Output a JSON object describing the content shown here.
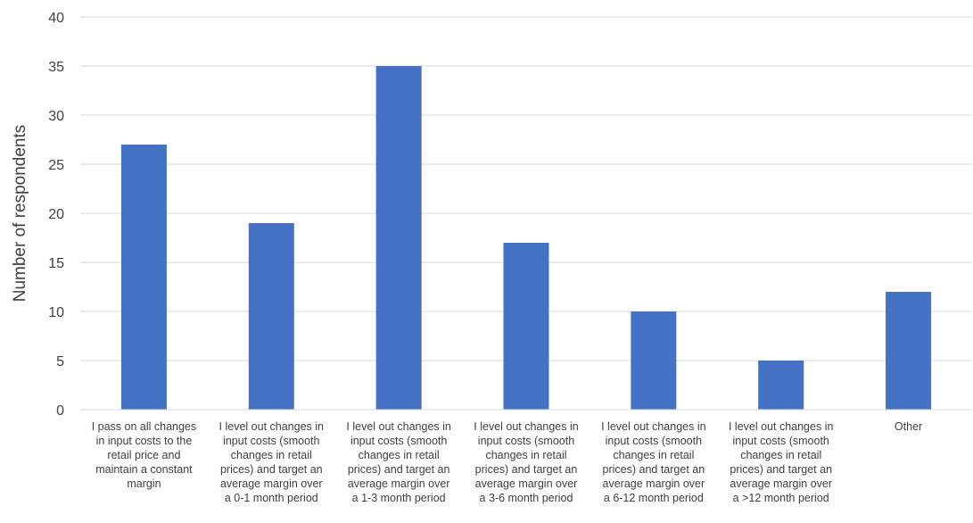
{
  "chart_data": {
    "type": "bar",
    "title": "",
    "xlabel": "",
    "ylabel": "Number of respondents",
    "ylim": [
      0,
      40
    ],
    "yticks": [
      0,
      5,
      10,
      15,
      20,
      25,
      30,
      35,
      40
    ],
    "grid": true,
    "legend": "none",
    "bar_color": "#4472C4",
    "categories": [
      "I pass on all changes in input costs to the retail price and maintain a constant margin",
      "I level out changes in input costs (smooth changes in retail prices) and target an average margin over a 0-1 month period",
      "I level out changes in input costs (smooth changes in retail prices) and target an average margin over a 1-3 month period",
      "I level out changes in input costs (smooth changes in retail prices) and target an average margin over a 3-6 month period",
      "I level out changes in input costs (smooth changes in retail prices) and target an average margin over a 6-12 month period",
      "I level out changes in input costs (smooth changes in retail prices) and target an average margin over a >12 month period",
      "Other"
    ],
    "category_lines": [
      [
        "I pass on all changes",
        "in input costs to the",
        "retail price and",
        "maintain a constant",
        "margin"
      ],
      [
        "I level out changes in",
        "input costs (smooth",
        "changes in retail",
        "prices) and target an",
        "average margin over",
        "a 0-1 month period"
      ],
      [
        "I level out changes in",
        "input costs (smooth",
        "changes in retail",
        "prices) and target an",
        "average margin over",
        "a 1-3 month period"
      ],
      [
        "I level out changes in",
        "input costs (smooth",
        "changes in retail",
        "prices) and target an",
        "average margin over",
        "a 3-6 month period"
      ],
      [
        "I level out changes in",
        "input costs (smooth",
        "changes in retail",
        "prices) and target an",
        "average margin over",
        "a 6-12 month period"
      ],
      [
        "I level out changes in",
        "input costs (smooth",
        "changes in retail",
        "prices) and target an",
        "average margin over",
        "a >12 month period"
      ],
      [
        "Other"
      ]
    ],
    "values": [
      27,
      19,
      35,
      17,
      10,
      5,
      12
    ]
  }
}
